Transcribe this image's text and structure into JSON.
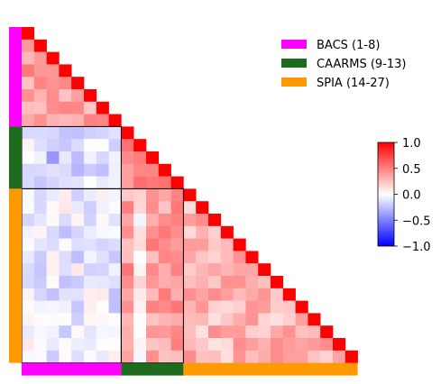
{
  "chart_data": {
    "type": "heatmap",
    "matrix_shape": "lower-triangular",
    "n": 27,
    "colormap": "bwr",
    "clim": [
      -1.0,
      1.0
    ],
    "colorbar_ticks": [
      {
        "value": 1.0,
        "label": "1.0"
      },
      {
        "value": 0.5,
        "label": "0.5"
      },
      {
        "value": 0.0,
        "label": "0.0"
      },
      {
        "value": -0.5,
        "label": "−0.5"
      },
      {
        "value": -1.0,
        "label": "−1.0"
      }
    ],
    "groups": [
      {
        "name": "BACS (1-8)",
        "start": 1,
        "end": 8,
        "color": "#ff00ff"
      },
      {
        "name": "CAARMS (9-13)",
        "start": 9,
        "end": 13,
        "color": "#1e6b1e"
      },
      {
        "name": "SPIA (14-27)",
        "start": 14,
        "end": 27,
        "color": "#ff9900"
      }
    ],
    "block_means": {
      "1-1": 0.35,
      "2-1": -0.12,
      "2-2": 0.55,
      "3-1": -0.08,
      "3-2": 0.38,
      "3-3": 0.28
    },
    "legend_position": "top-right",
    "grid": false
  }
}
